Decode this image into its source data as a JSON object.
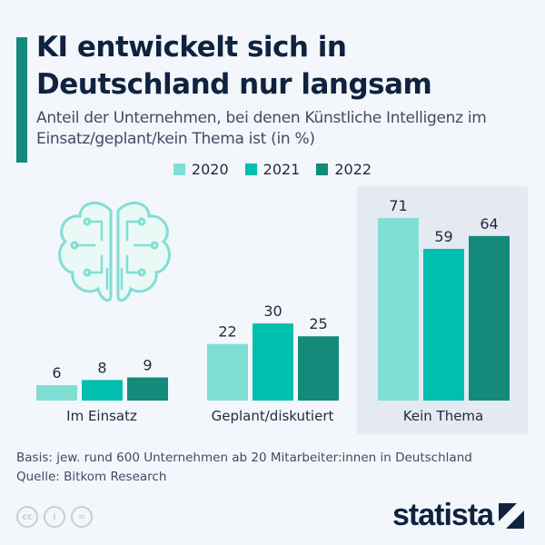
{
  "header": {
    "title_line1": "KI entwickelt sich in",
    "title_line2": "Deutschland nur langsam",
    "subtitle": "Anteil der Unternehmen, bei denen Künstliche Intelligenz im Einsatz/geplant/kein Thema ist (in %)"
  },
  "chart_data": {
    "type": "bar",
    "categories": [
      "Im Einsatz",
      "Geplant/diskutiert",
      "Kein Thema"
    ],
    "series": [
      {
        "name": "2020",
        "values": [
          6,
          22,
          71
        ],
        "color": "#7fdfd4"
      },
      {
        "name": "2021",
        "values": [
          8,
          30,
          59
        ],
        "color": "#00bfae"
      },
      {
        "name": "2022",
        "values": [
          9,
          25,
          64
        ],
        "color": "#138a7a"
      }
    ],
    "ylim": [
      0,
      71
    ],
    "grid": false,
    "legend": "top-center",
    "highlighted_category": "Kein Thema",
    "data_labels": true
  },
  "footer": {
    "basis": "Basis: jew. rund 600 Unternehmen ab 20 Mitarbeiter:innen in Deutschland",
    "source": "Quelle: Bitkom Research"
  },
  "license_icons": [
    "cc",
    "by",
    "nd"
  ],
  "brand": {
    "logo": "statista"
  }
}
